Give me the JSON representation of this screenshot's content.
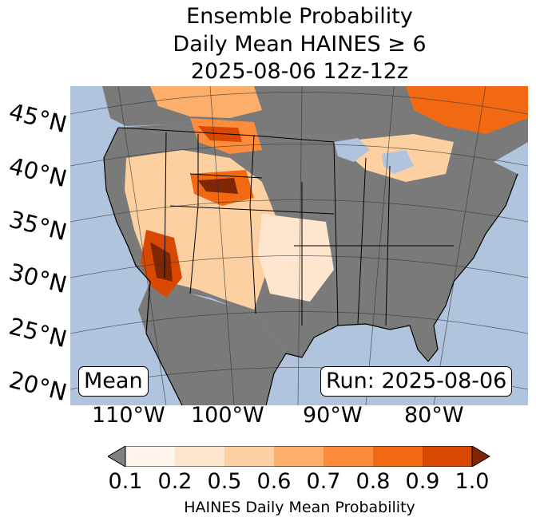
{
  "title": {
    "line1": "Ensemble Probability",
    "line2": "Daily Mean HAINES ≥ 6",
    "line3": "2025-08-06 12z-12z"
  },
  "latitude_labels": [
    "45°N",
    "40°N",
    "35°N",
    "30°N",
    "25°N",
    "20°N"
  ],
  "longitude_labels": [
    "110°W",
    "100°W",
    "90°W",
    "80°W"
  ],
  "annotations": {
    "left": "Mean",
    "right": "Run: 2025-08-06"
  },
  "colorbar": {
    "tick_labels": [
      "0.1",
      "0.2",
      "0.5",
      "0.6",
      "0.7",
      "0.8",
      "0.9",
      "1.0"
    ],
    "label": "HAINES Daily Mean Probability",
    "under_color": "#808080",
    "over_color": "#7f2704",
    "colors": [
      "#fff5eb",
      "#fee6ce",
      "#fdd0a2",
      "#fdae6b",
      "#fd8d3c",
      "#f16913",
      "#d94801"
    ]
  },
  "map_colors": {
    "ocean": "#b0c4de",
    "land_low": "#7a7a7a",
    "lakes": "#b0c4de"
  }
}
